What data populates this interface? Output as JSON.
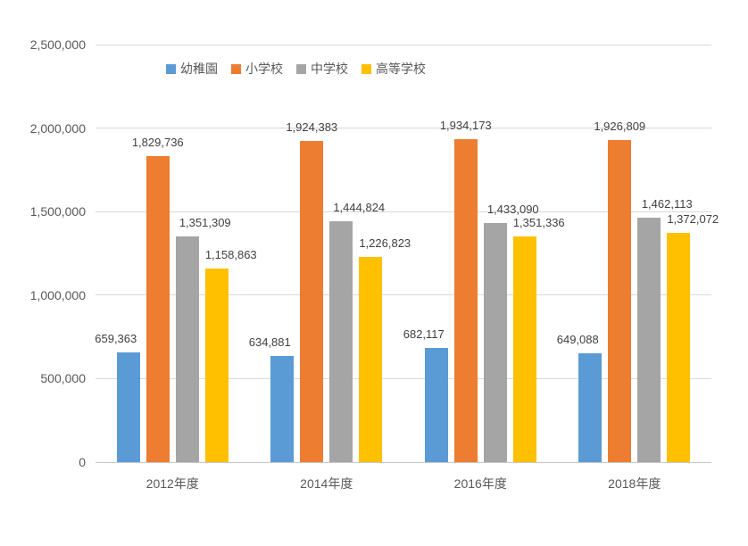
{
  "chart_data": {
    "type": "bar",
    "title": "",
    "categories": [
      "2012年度",
      "2014年度",
      "2016年度",
      "2018年度"
    ],
    "series": [
      {
        "name": "幼稚園",
        "color": "#5B9BD5",
        "values": [
          659363,
          634881,
          682117,
          649088
        ]
      },
      {
        "name": "小学校",
        "color": "#ED7D31",
        "values": [
          1829736,
          1924383,
          1934173,
          1926809
        ]
      },
      {
        "name": "中学校",
        "color": "#A5A5A5",
        "values": [
          1351309,
          1444824,
          1433090,
          1462113
        ]
      },
      {
        "name": "高等学校",
        "color": "#FFC000",
        "values": [
          1158863,
          1226823,
          1351336,
          1372072
        ]
      }
    ],
    "data_labels": [
      [
        "659,363",
        "634,881",
        "682,117",
        "649,088"
      ],
      [
        "1,829,736",
        "1,924,383",
        "1,934,173",
        "1,926,809"
      ],
      [
        "1,351,309",
        "1,444,824",
        "1,433,090",
        "1,462,113"
      ],
      [
        "1,158,863",
        "1,226,823",
        "1,351,336",
        "1,372,072"
      ]
    ],
    "xlabel": "",
    "ylabel": "",
    "ylim": [
      0,
      2500000
    ],
    "y_ticks": [
      0,
      500000,
      1000000,
      1500000,
      2000000,
      2500000
    ],
    "y_tick_labels": [
      "0",
      "500,000",
      "1,000,000",
      "1,500,000",
      "2,000,000",
      "2,500,000"
    ],
    "grid": "horizontal",
    "legend_position": "top",
    "colors": {
      "background": "#ffffff",
      "gridline": "#d9d9d9",
      "axis_text": "#595959",
      "data_label_text": "#404040"
    }
  }
}
